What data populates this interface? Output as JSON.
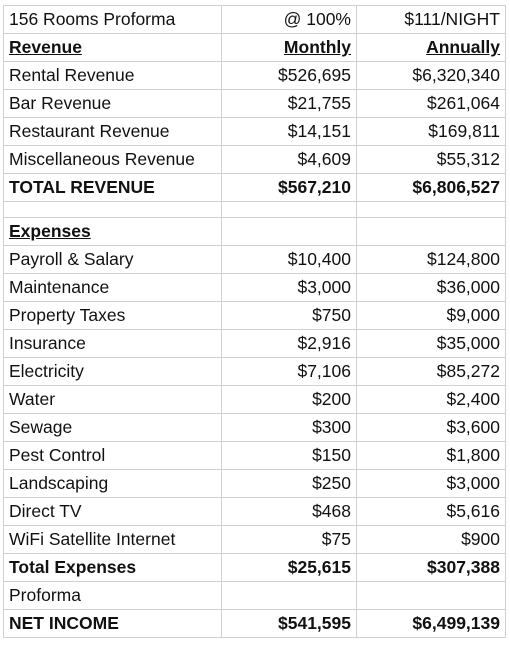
{
  "header": [
    "156 Rooms Proforma",
    "@ 100%",
    "$111/NIGHT"
  ],
  "revenue": {
    "headers": [
      "Revenue",
      "Monthly",
      "Annually"
    ],
    "rows": [
      [
        "Rental Revenue",
        "$526,695",
        "$6,320,340"
      ],
      [
        "Bar Revenue",
        "$21,755",
        "$261,064"
      ],
      [
        "Restaurant Revenue",
        "$14,151",
        "$169,811"
      ],
      [
        "Miscellaneous Revenue",
        "$4,609",
        "$55,312"
      ]
    ],
    "total": [
      "TOTAL REVENUE",
      "$567,210",
      "$6,806,527"
    ]
  },
  "expenses": {
    "title": "Expenses",
    "rows": [
      [
        "Payroll & Salary",
        "$10,400",
        "$124,800"
      ],
      [
        "Maintenance",
        "$3,000",
        "$36,000"
      ],
      [
        "Property Taxes",
        "$750",
        "$9,000"
      ],
      [
        "Insurance",
        "$2,916",
        "$35,000"
      ],
      [
        "Electricity",
        "$7,106",
        "$85,272"
      ],
      [
        "Water",
        "$200",
        "$2,400"
      ],
      [
        "Sewage",
        "$300",
        "$3,600"
      ],
      [
        "Pest Control",
        "$150",
        "$1,800"
      ],
      [
        "Landscaping",
        "$250",
        "$3,000"
      ],
      [
        "Direct TV",
        "$468",
        "$5,616"
      ],
      [
        "WiFi Satellite Internet",
        "$75",
        "$900"
      ]
    ],
    "total": [
      "Total Expenses",
      "$25,615",
      "$307,388"
    ]
  },
  "proforma": "Proforma",
  "net_income": [
    "NET INCOME",
    "$541,595",
    "$6,499,139"
  ]
}
